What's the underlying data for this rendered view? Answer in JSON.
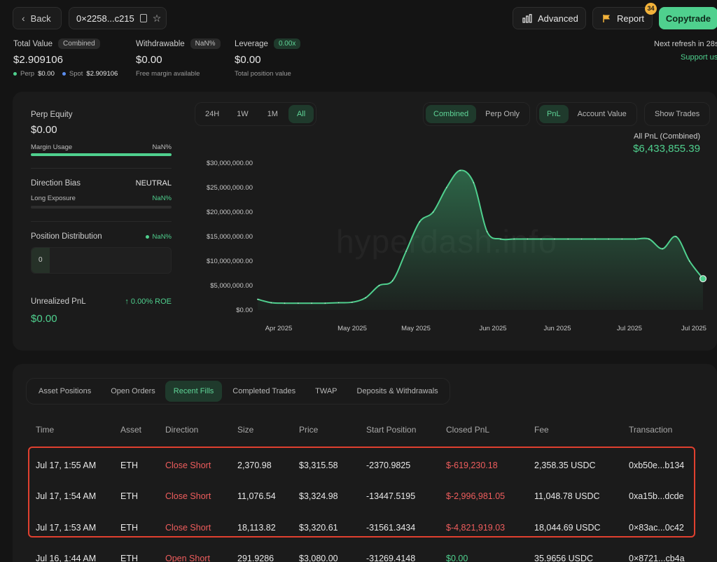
{
  "header": {
    "back_label": "Back",
    "address": "0×2258...c215",
    "advanced_label": "Advanced",
    "report_label": "Report",
    "report_badge": "34",
    "copytrade_label": "Copytrade",
    "next_refresh": "Next refresh in 28s",
    "support": "Support us"
  },
  "summary": {
    "total_value_label": "Total Value",
    "total_value_pill": "Combined",
    "total_value": "$2.909106",
    "perp_label": "Perp",
    "perp_value": "$0.00",
    "spot_label": "Spot",
    "spot_value": "$2.909106",
    "withdrawable_label": "Withdrawable",
    "withdrawable_pill": "NaN%",
    "withdrawable": "$0.00",
    "withdrawable_sub": "Free margin available",
    "leverage_label": "Leverage",
    "leverage_pill": "0.00x",
    "leverage": "$0.00",
    "leverage_sub": "Total position value"
  },
  "left_panel": {
    "perp_equity_label": "Perp Equity",
    "perp_equity": "$0.00",
    "margin_usage_label": "Margin Usage",
    "margin_usage": "NaN%",
    "direction_bias_label": "Direction Bias",
    "direction_bias": "NEUTRAL",
    "long_exposure_label": "Long Exposure",
    "long_exposure": "NaN%",
    "position_dist_label": "Position Distribution",
    "position_dist_value": "NaN%",
    "position_dist_count": "0",
    "unrealized_label": "Unrealized PnL",
    "roe": "↑ 0.00% ROE",
    "unrealized": "$0.00"
  },
  "chart_controls": {
    "ranges": [
      "24H",
      "1W",
      "1M",
      "All"
    ],
    "active_range": 3,
    "modes": [
      "Combined",
      "Perp Only"
    ],
    "metrics": [
      "PnL",
      "Account Value"
    ],
    "show_trades": "Show Trades"
  },
  "chart_data": {
    "type": "area",
    "title": "All PnL (Combined)",
    "total": "$6,433,855.39",
    "watermark": "hyperdash.info",
    "y_ticks": [
      "$30,000,000.00",
      "$25,000,000.00",
      "$20,000,000.00",
      "$15,000,000.00",
      "$10,000,000.00",
      "$5,000,000.00",
      "$0.00"
    ],
    "ylim": [
      0,
      30000000
    ],
    "x_ticks": [
      "Apr 2025",
      "May 2025",
      "May 2025",
      "Jun 2025",
      "Jun 2025",
      "Jul 2025",
      "Jul 2025"
    ],
    "values": [
      2200000,
      1500000,
      1400000,
      1400000,
      1400000,
      1400000,
      1500000,
      1600000,
      2500000,
      5000000,
      6000000,
      12000000,
      18000000,
      20000000,
      25000000,
      28500000,
      26000000,
      16000000,
      14500000,
      14500000,
      14500000,
      14500000,
      14500000,
      14500000,
      14500000,
      14500000,
      14500000,
      14500000,
      14500000,
      14500000,
      12500000,
      15000000,
      10000000,
      6400000
    ],
    "color": "#4fd08e"
  },
  "tabs": {
    "items": [
      "Asset Positions",
      "Open Orders",
      "Recent Fills",
      "Completed Trades",
      "TWAP",
      "Deposits & Withdrawals"
    ],
    "active": 2
  },
  "table": {
    "columns": [
      "Time",
      "Asset",
      "Direction",
      "Size",
      "Price",
      "Start Position",
      "Closed PnL",
      "Fee",
      "Transaction"
    ],
    "rows": [
      {
        "time": "Jul 17, 1:55 AM",
        "asset": "ETH",
        "direction": "Close Short",
        "size": "2,370.98",
        "price": "$3,315.58",
        "start": "-2370.9825",
        "pnl": "$-619,230.18",
        "fee": "2,358.35 USDC",
        "tx": "0xb50e...b134"
      },
      {
        "time": "Jul 17, 1:54 AM",
        "asset": "ETH",
        "direction": "Close Short",
        "size": "11,076.54",
        "price": "$3,324.98",
        "start": "-13447.5195",
        "pnl": "$-2,996,981.05",
        "fee": "11,048.78 USDC",
        "tx": "0xa15b...dcde"
      },
      {
        "time": "Jul 17, 1:53 AM",
        "asset": "ETH",
        "direction": "Close Short",
        "size": "18,113.82",
        "price": "$3,320.61",
        "start": "-31561.3434",
        "pnl": "$-4,821,919.03",
        "fee": "18,044.69 USDC",
        "tx": "0×83ac...0c42"
      },
      {
        "time": "Jul 16, 1:44 AM",
        "asset": "ETH",
        "direction": "Open Short",
        "size": "291.9286",
        "price": "$3,080.00",
        "start": "-31269.4148",
        "pnl": "$0.00",
        "fee": "35.9656 USDC",
        "tx": "0×8721...cb4a"
      }
    ]
  }
}
